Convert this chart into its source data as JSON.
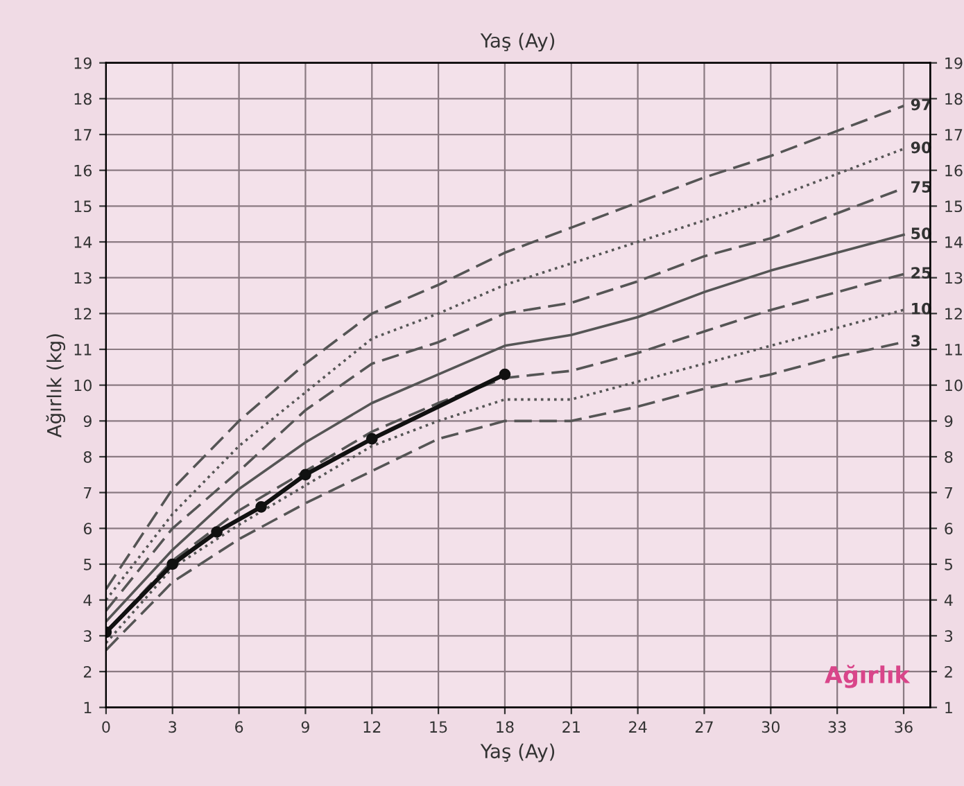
{
  "chart_data": {
    "type": "line",
    "title": "Yaş (Ay)",
    "xlabel": "Yaş (Ay)",
    "ylabel": "Ağırlık (kg)",
    "x": [
      0,
      3,
      6,
      9,
      12,
      15,
      18,
      21,
      24,
      27,
      30,
      33,
      36
    ],
    "series": [
      {
        "name": "97",
        "color": "#555555",
        "line_style": "dashed",
        "values": [
          4.3,
          7.1,
          9.0,
          10.6,
          12.0,
          12.8,
          13.7,
          14.4,
          15.1,
          15.8,
          16.4,
          17.1,
          17.8
        ]
      },
      {
        "name": "90",
        "color": "#555555",
        "line_style": "dotted",
        "values": [
          4.0,
          6.4,
          8.3,
          9.8,
          11.3,
          12.0,
          12.8,
          13.4,
          14.0,
          14.6,
          15.2,
          15.9,
          16.6
        ]
      },
      {
        "name": "75",
        "color": "#555555",
        "line_style": "dashed",
        "values": [
          3.7,
          6.0,
          7.6,
          9.3,
          10.6,
          11.2,
          12.0,
          12.3,
          12.9,
          13.6,
          14.1,
          14.8,
          15.5
        ]
      },
      {
        "name": "50",
        "color": "#555555",
        "line_style": "solid",
        "values": [
          3.4,
          5.4,
          7.1,
          8.4,
          9.5,
          10.3,
          11.1,
          11.4,
          11.9,
          12.6,
          13.2,
          13.7,
          14.2
        ]
      },
      {
        "name": "25",
        "color": "#555555",
        "line_style": "dashed",
        "values": [
          3.1,
          5.1,
          6.5,
          7.6,
          8.7,
          9.5,
          10.2,
          10.4,
          10.9,
          11.5,
          12.1,
          12.6,
          13.1
        ]
      },
      {
        "name": "10",
        "color": "#555555",
        "line_style": "dotted",
        "values": [
          2.8,
          4.9,
          6.1,
          7.2,
          8.3,
          9.0,
          9.6,
          9.6,
          10.1,
          10.6,
          11.1,
          11.6,
          12.1
        ]
      },
      {
        "name": "3",
        "color": "#555555",
        "line_style": "dashed",
        "values": [
          2.6,
          4.5,
          5.7,
          6.7,
          7.6,
          8.5,
          9.0,
          9.0,
          9.4,
          9.9,
          10.3,
          10.8,
          11.2
        ]
      },
      {
        "color": "#111111",
        "line_style": "solid",
        "marker": "circle",
        "x": [
          0,
          3,
          5,
          7,
          9,
          12,
          18
        ],
        "values": [
          3.1,
          5.0,
          5.9,
          6.6,
          7.5,
          8.5,
          10.3
        ]
      }
    ],
    "xlim": [
      0,
      37.2
    ],
    "xticks": [
      0,
      3,
      6,
      9,
      12,
      15,
      18,
      21,
      24,
      27,
      30,
      33,
      36
    ],
    "ylim": [
      1,
      19
    ],
    "yticks": [
      1,
      2,
      3,
      4,
      5,
      6,
      7,
      8,
      9,
      10,
      11,
      12,
      13,
      14,
      15,
      16,
      17,
      18,
      19
    ],
    "y2lim": [
      1,
      19
    ],
    "y2ticks": [
      1,
      2,
      3,
      4,
      5,
      6,
      7,
      8,
      9,
      10,
      11,
      12,
      13,
      14,
      15,
      16,
      17,
      18,
      19
    ],
    "grid": true,
    "legend": false,
    "annotations": [
      "Ağırlık"
    ]
  }
}
